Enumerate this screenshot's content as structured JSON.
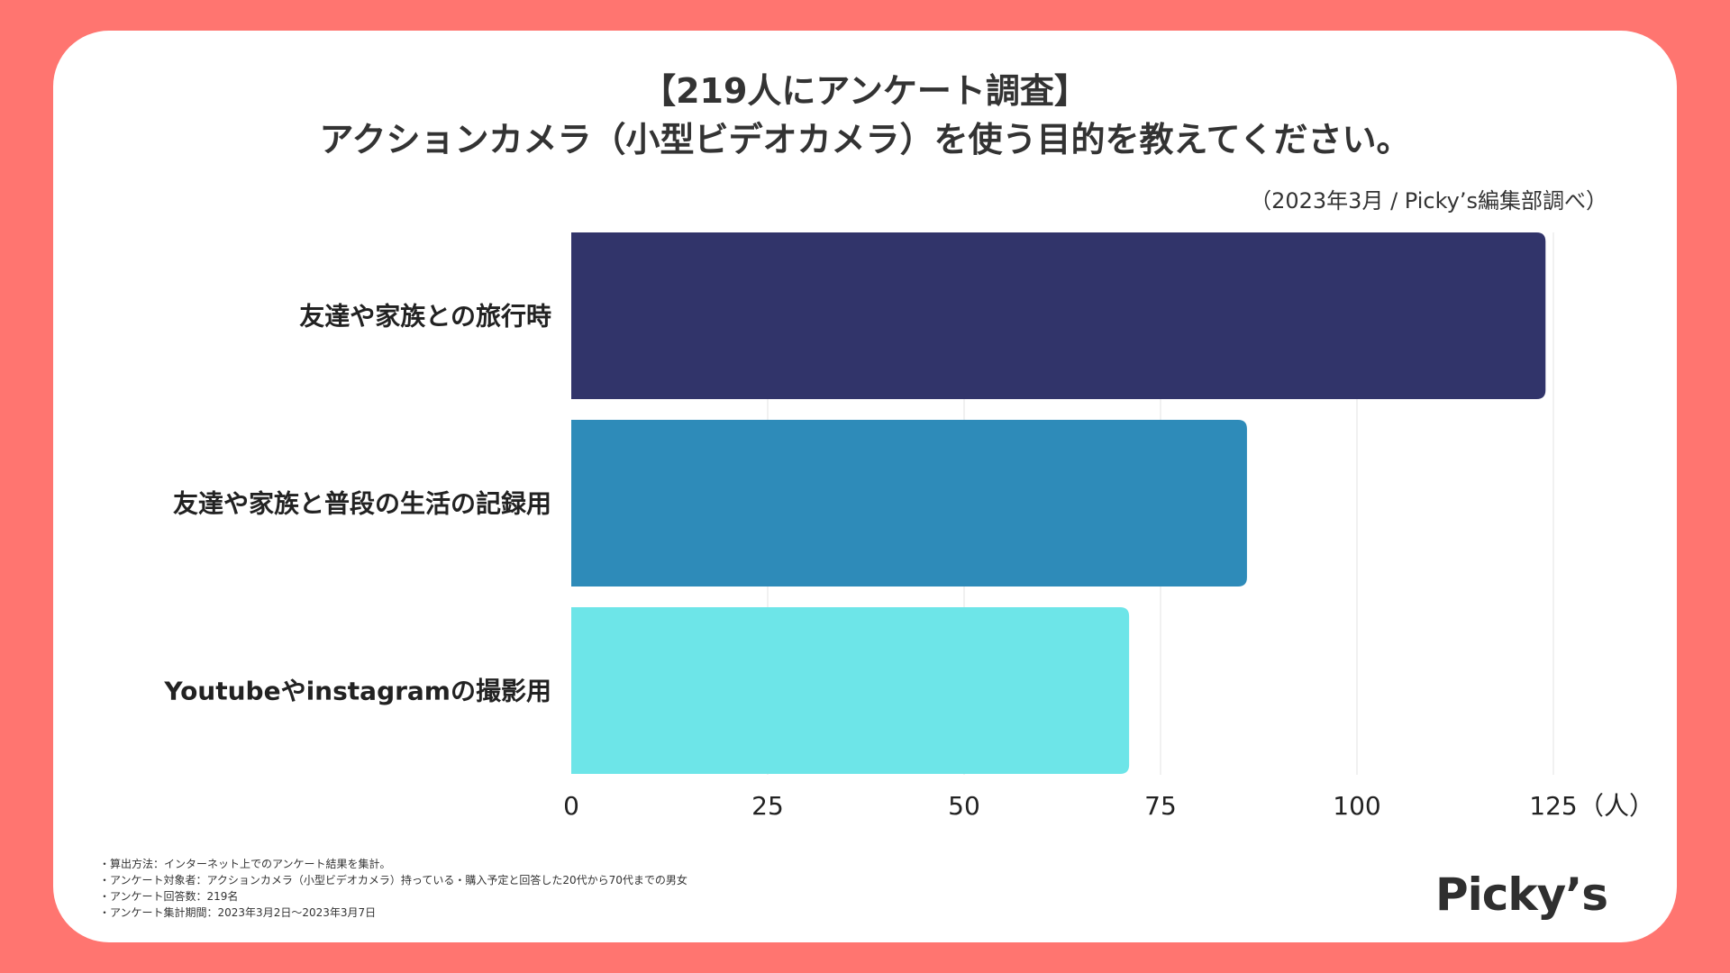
{
  "title_line1": "【219人にアンケート調査】",
  "title_line2": "アクションカメラ（小型ビデオカメラ）を使う目的を教えてください。",
  "source": "（2023年3月 / Picky’s編集部調べ）",
  "unit_label": "（人）",
  "notes": [
    "・算出方法：インターネット上でのアンケート結果を集計。",
    "・アンケート対象者：アクションカメラ（小型ビデオカメラ）持っている・購入予定と回答した20代から70代までの男女",
    "・アンケート回答数：219名",
    "・アンケート集計期間：2023年3月2日〜2023年3月7日"
  ],
  "logo": "Picky’s",
  "colors": {
    "background": "#ff7570",
    "bars": [
      "#31346a",
      "#2e8bb9",
      "#6de5e8"
    ],
    "grid": "#e3e3e3"
  },
  "chart_data": {
    "type": "bar",
    "orientation": "horizontal",
    "categories": [
      "友達や家族との旅行時",
      "友達や家族と普段の生活の記録用",
      "Youtubeやinstagramの撮影用"
    ],
    "values": [
      124,
      86,
      71
    ],
    "xlim": [
      0,
      125
    ],
    "xticks": [
      0,
      25,
      50,
      75,
      100,
      125
    ],
    "xlabel": "（人）",
    "grid": true
  }
}
